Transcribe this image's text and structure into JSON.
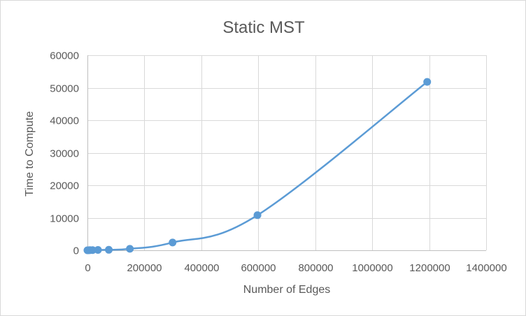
{
  "chart_data": {
    "type": "scatter",
    "title": "Static MST",
    "xlabel": "Number of Edges",
    "ylabel": "Time to Compute",
    "xlim": [
      0,
      1400000
    ],
    "ylim": [
      0,
      60000
    ],
    "x_ticks": [
      0,
      200000,
      400000,
      600000,
      800000,
      1000000,
      1200000,
      1400000
    ],
    "y_ticks": [
      0,
      10000,
      20000,
      30000,
      40000,
      50000,
      60000
    ],
    "grid": true,
    "smoothed_line": true,
    "series": [
      {
        "color": "#5b9bd5",
        "points": [
          {
            "x": 0,
            "y": 0
          },
          {
            "x": 2000,
            "y": 10
          },
          {
            "x": 5000,
            "y": 20
          },
          {
            "x": 9000,
            "y": 40
          },
          {
            "x": 18000,
            "y": 60
          },
          {
            "x": 37000,
            "y": 100
          },
          {
            "x": 75000,
            "y": 150
          },
          {
            "x": 149000,
            "y": 450
          },
          {
            "x": 299000,
            "y": 2400
          },
          {
            "x": 597000,
            "y": 10800
          },
          {
            "x": 1193000,
            "y": 51800
          }
        ]
      }
    ]
  }
}
